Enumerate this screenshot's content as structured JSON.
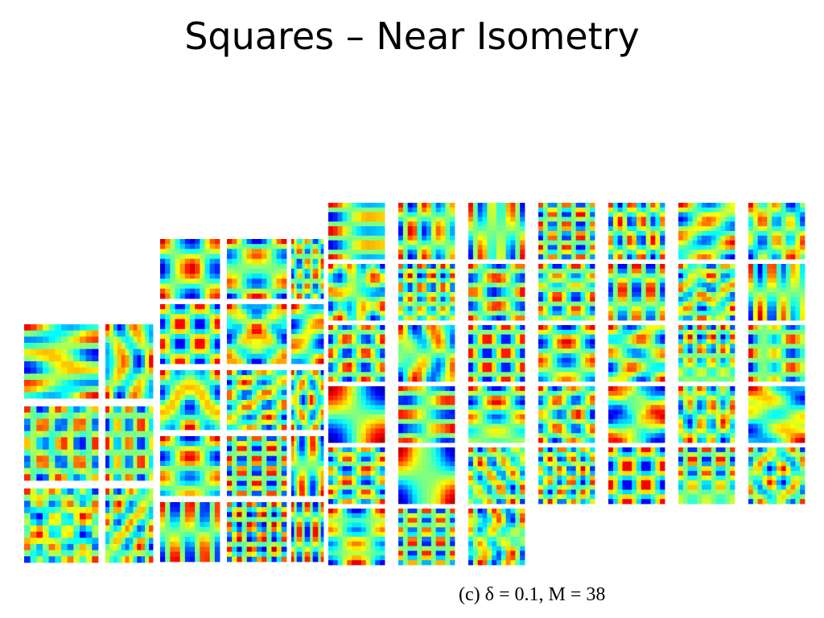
{
  "title": "Squares – Near Isometry",
  "caption": "(c) δ = 0.1, M = 38"
}
